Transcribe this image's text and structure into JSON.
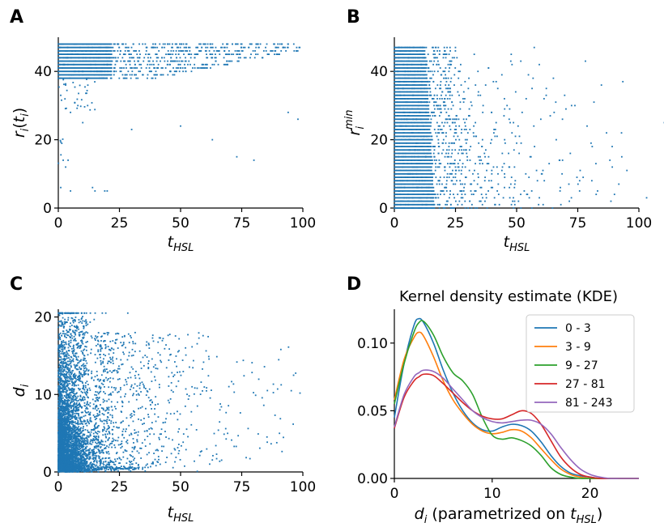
{
  "chart_data": [
    {
      "panel": "A",
      "type": "scatter",
      "xlabel": "t_HSL",
      "ylabel": "r_i(t_i)",
      "xlim": [
        0,
        100
      ],
      "ylim": [
        0,
        50
      ],
      "xticks": [
        "0",
        "25",
        "50",
        "75",
        "100"
      ],
      "yticks": [
        "0",
        "20",
        "40"
      ],
      "color": "#1f77b4",
      "description_rows": {
        "dense_rows": [
          38,
          39,
          40,
          41,
          42,
          43,
          44,
          45,
          46,
          47,
          48
        ],
        "sparse_points": [
          [
            2,
            14
          ],
          [
            4,
            14
          ],
          [
            3,
            12
          ],
          [
            14,
            6
          ],
          [
            15,
            5
          ],
          [
            19,
            5
          ],
          [
            20,
            5
          ],
          [
            5,
            5
          ],
          [
            1,
            6
          ],
          [
            5,
            28
          ],
          [
            10,
            25
          ],
          [
            30,
            23
          ],
          [
            50,
            24
          ],
          [
            63,
            20
          ],
          [
            73,
            15
          ],
          [
            80,
            14
          ],
          [
            94,
            28
          ],
          [
            98,
            26
          ],
          [
            8,
            30
          ],
          [
            12,
            30
          ],
          [
            3,
            36
          ],
          [
            1,
            33
          ]
        ]
      }
    },
    {
      "panel": "B",
      "type": "scatter",
      "xlabel": "t_HSL",
      "ylabel": "r_i^min",
      "xlim": [
        0,
        100
      ],
      "ylim": [
        0,
        50
      ],
      "xticks": [
        "0",
        "25",
        "50",
        "75",
        "100"
      ],
      "yticks": [
        "0",
        "20",
        "40"
      ],
      "color": "#1f77b4",
      "description_rows": {
        "row_spacing": 1,
        "max_row": 47,
        "dense_extent_tHSL": 30
      }
    },
    {
      "panel": "C",
      "type": "scatter",
      "xlabel": "t_HSL",
      "ylabel": "d_i",
      "xlim": [
        0,
        100
      ],
      "ylim": [
        0,
        21
      ],
      "xticks": [
        "0",
        "25",
        "50",
        "75",
        "100"
      ],
      "yticks": [
        "0",
        "10",
        "20"
      ],
      "color": "#1f77b4"
    },
    {
      "panel": "D",
      "type": "line",
      "title": "Kernel density estimate (KDE)",
      "xlabel": "d_i (parametrized on t_HSL)",
      "xlim": [
        0,
        25
      ],
      "ylim": [
        0,
        0.125
      ],
      "xticks": [
        "0",
        "10",
        "20"
      ],
      "yticks": [
        "0.00",
        "0.05",
        "0.10"
      ],
      "x": [
        0,
        1,
        2,
        2.5,
        3,
        4,
        5,
        6,
        7,
        8,
        9,
        10,
        11,
        12,
        13,
        14,
        15,
        16,
        17,
        18,
        19,
        20,
        21,
        22,
        23,
        24,
        25
      ],
      "series": [
        {
          "name": "0 - 3",
          "color": "#1f77b4",
          "values": [
            0.045,
            0.085,
            0.113,
            0.118,
            0.115,
            0.1,
            0.08,
            0.063,
            0.05,
            0.041,
            0.036,
            0.035,
            0.038,
            0.04,
            0.039,
            0.035,
            0.027,
            0.017,
            0.009,
            0.004,
            0.002,
            0.001,
            0.0,
            0.0,
            0.0,
            0.0,
            0.0
          ]
        },
        {
          "name": "3 - 9",
          "color": "#ff7f0e",
          "values": [
            0.058,
            0.088,
            0.104,
            0.108,
            0.105,
            0.09,
            0.072,
            0.058,
            0.048,
            0.04,
            0.035,
            0.033,
            0.034,
            0.036,
            0.035,
            0.03,
            0.022,
            0.014,
            0.007,
            0.003,
            0.001,
            0.0,
            0.0,
            0.0,
            0.0,
            0.0,
            0.0
          ]
        },
        {
          "name": "9 - 27",
          "color": "#2ca02c",
          "values": [
            0.055,
            0.085,
            0.108,
            0.115,
            0.116,
            0.106,
            0.09,
            0.078,
            0.072,
            0.062,
            0.045,
            0.032,
            0.029,
            0.03,
            0.028,
            0.024,
            0.017,
            0.008,
            0.003,
            0.001,
            0.0,
            0.0,
            0.0,
            0.0,
            0.0,
            0.0,
            0.0
          ]
        },
        {
          "name": "27 - 81",
          "color": "#d62728",
          "values": [
            0.037,
            0.06,
            0.072,
            0.075,
            0.077,
            0.076,
            0.07,
            0.063,
            0.056,
            0.05,
            0.046,
            0.044,
            0.044,
            0.047,
            0.05,
            0.048,
            0.04,
            0.028,
            0.016,
            0.008,
            0.003,
            0.001,
            0.0,
            0.0,
            0.0,
            0.0,
            0.0
          ]
        },
        {
          "name": "81 - 243",
          "color": "#9467bd",
          "values": [
            0.038,
            0.062,
            0.075,
            0.078,
            0.08,
            0.079,
            0.074,
            0.066,
            0.058,
            0.05,
            0.045,
            0.042,
            0.041,
            0.042,
            0.043,
            0.043,
            0.04,
            0.033,
            0.023,
            0.014,
            0.007,
            0.003,
            0.001,
            0.0,
            0.0,
            0.0,
            0.0
          ]
        }
      ],
      "legend": "top-right"
    }
  ],
  "labels": {
    "A": "A",
    "B": "B",
    "C": "C",
    "D": "D"
  }
}
